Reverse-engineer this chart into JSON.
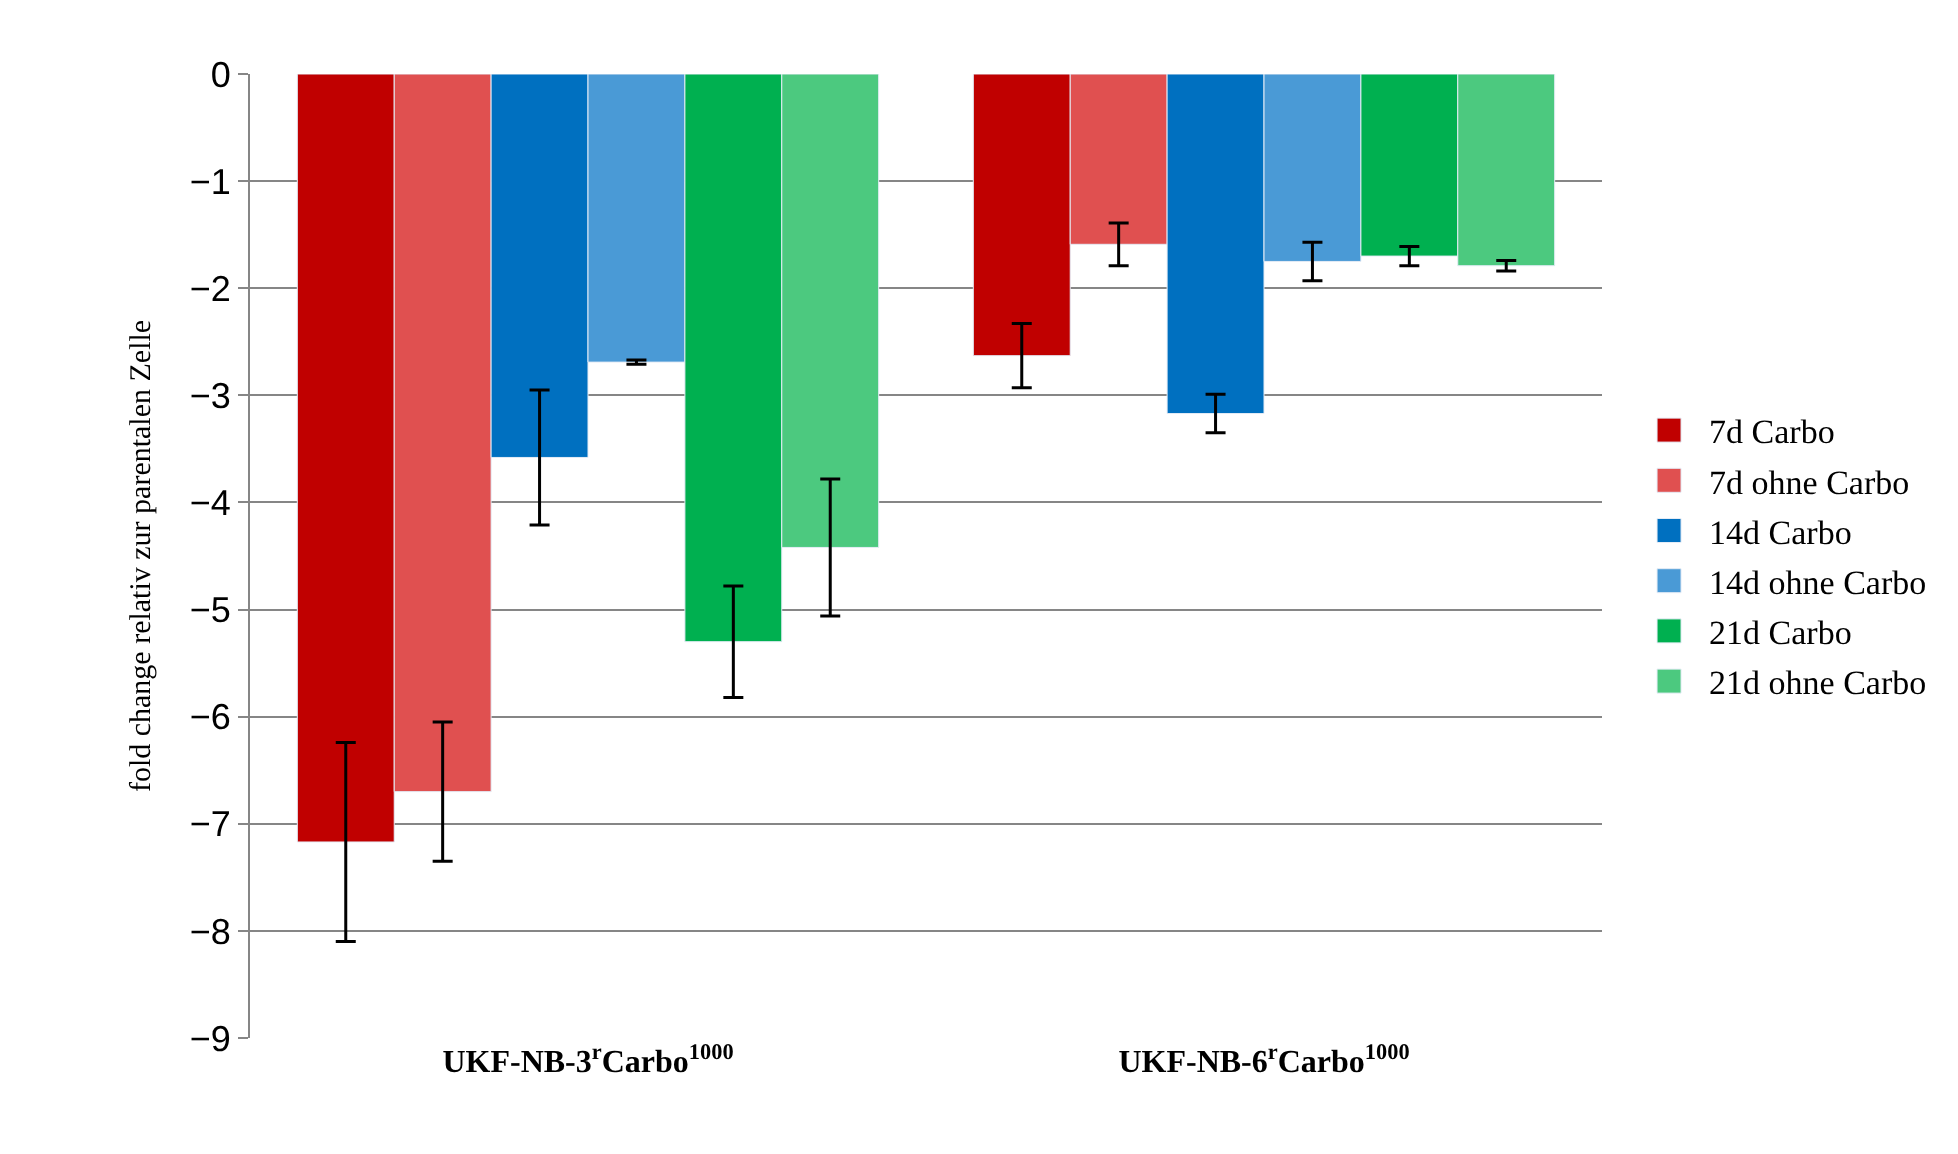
{
  "chart_data": {
    "type": "bar",
    "ylabel": "fold change relativ zur parentalen Zelle",
    "categories": [
      "UKF-NB-3$^{r}$Carbo$^{1000}$",
      "UKF-NB-6$^{r}$Carbo$^{1000}$"
    ],
    "series": [
      {
        "name": "7d Carbo",
        "color": "#c00000",
        "values": [
          -7.17,
          -2.63
        ],
        "errors": [
          0.93,
          0.3
        ]
      },
      {
        "name": "7d ohne Carbo",
        "color": "#e05050",
        "values": [
          -6.7,
          -1.59
        ],
        "errors": [
          0.65,
          0.2
        ]
      },
      {
        "name": "14d Carbo",
        "color": "#0070c0",
        "values": [
          -3.58,
          -3.17
        ],
        "errors": [
          0.63,
          0.18
        ]
      },
      {
        "name": "14d ohne Carbo",
        "color": "#4a9ad6",
        "values": [
          -2.69,
          -1.75
        ],
        "errors": [
          0.02,
          0.18
        ]
      },
      {
        "name": "21d Carbo",
        "color": "#00b050",
        "values": [
          -5.3,
          -1.7
        ],
        "errors": [
          0.52,
          0.09
        ]
      },
      {
        "name": "21d ohne Carbo",
        "color": "#4cc97f",
        "values": [
          -4.42,
          -1.79
        ],
        "errors": [
          0.64,
          0.05
        ]
      }
    ],
    "ylim": [
      -9,
      0
    ],
    "yticks": [
      0,
      -1,
      -2,
      -3,
      -4,
      -5,
      -6,
      -7,
      -8,
      -9
    ],
    "grid": "y",
    "legend": "right"
  }
}
